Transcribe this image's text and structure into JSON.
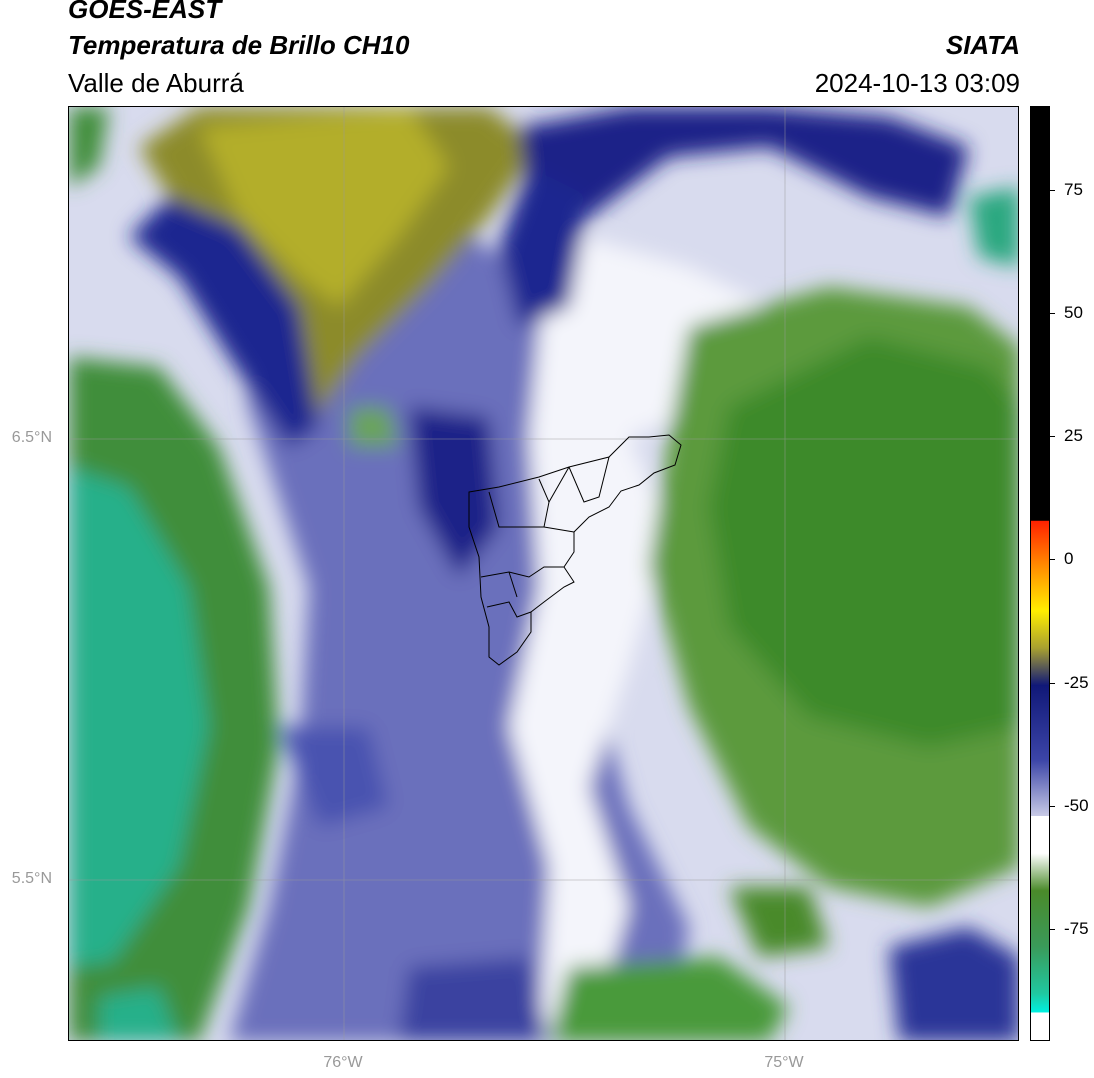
{
  "header": {
    "satellite": "GOES-EAST",
    "product": "Temperatura de Brillo CH10",
    "region": "Valle de Aburrá",
    "org": "SIATA",
    "timestamp": "2024-10-13 03:09"
  },
  "map": {
    "lat_labels": [
      "6.5°N",
      "5.5°N"
    ],
    "lon_labels": [
      "76°W",
      "75°W"
    ],
    "gridlines": true,
    "overlay": "Valle de Aburrá municipal boundaries"
  },
  "colorbar": {
    "tick_labels": [
      "75",
      "50",
      "25",
      "0",
      "-25",
      "-50",
      "-75"
    ],
    "colors": {
      "black": "#000000",
      "red": "#ff2200",
      "orange": "#ff8800",
      "yellow": "#ffee00",
      "olive": "#a8a030",
      "navy": "#101878",
      "blue": "#3c45a8",
      "lavender": "#c8cae6",
      "white": "#ffffff",
      "green": "#4a8a2a",
      "teal": "#20c8a0",
      "cyan": "#00f0e0"
    }
  }
}
